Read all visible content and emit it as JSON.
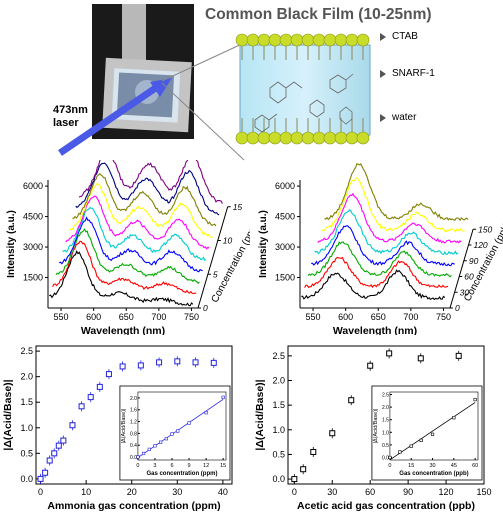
{
  "top": {
    "title": "Common Black Film (10-25nm)",
    "laser_label_line1": "473nm",
    "laser_label_line2": "laser",
    "layers": [
      "CTAB",
      "SNARF-1",
      "water"
    ]
  },
  "chart_data": [
    {
      "type": "line",
      "panel": "spectra-ammonia",
      "xlabel": "Wavelength (nm)",
      "ylabel": "Intensity (a.u.)",
      "zlabel": "Concentration (ppm)",
      "x_ticks": [
        "550",
        "600",
        "650",
        "700",
        "750"
      ],
      "y_ticks": [
        "1500",
        "3000",
        "4500",
        "6000"
      ],
      "z_ticks": [
        "0",
        "5",
        "10",
        "15"
      ],
      "xlim": [
        530,
        760
      ],
      "ylim": [
        0,
        6300
      ],
      "series_colors": [
        "#000000",
        "#ff0000",
        "#00aa00",
        "#0000ff",
        "#00cccc",
        "#ff00ff",
        "#ffff00",
        "#808000",
        "#000080",
        "#800080"
      ]
    },
    {
      "type": "line",
      "panel": "spectra-acetic",
      "xlabel": "Wavelength (nm)",
      "ylabel": "Intensity (a.u.)",
      "zlabel": "Concentration (ppb)",
      "x_ticks": [
        "550",
        "600",
        "650",
        "700",
        "750"
      ],
      "y_ticks": [
        "1500",
        "3000",
        "4500",
        "6000"
      ],
      "z_ticks": [
        "0",
        "30",
        "60",
        "90",
        "120",
        "150"
      ],
      "xlim": [
        530,
        760
      ],
      "ylim": [
        0,
        6300
      ],
      "series_colors": [
        "#000000",
        "#ff0000",
        "#00aa00",
        "#0000ff",
        "#00cccc",
        "#ff00ff",
        "#ffff00",
        "#808000"
      ]
    },
    {
      "type": "scatter",
      "panel": "ammonia-response",
      "xlabel": "Ammonia gas concentration (ppm)",
      "ylabel": "|Δ(Acid/Base)|",
      "xlim": [
        -1,
        42
      ],
      "ylim": [
        -0.1,
        2.6
      ],
      "x_ticks": [
        "0",
        "10",
        "20",
        "30",
        "40"
      ],
      "y_ticks": [
        "0.0",
        "0.5",
        "1.0",
        "1.5",
        "2.0",
        "2.5"
      ],
      "x": [
        0,
        1,
        2,
        3,
        4,
        5,
        7,
        9,
        11,
        13,
        15,
        18,
        22,
        26,
        30,
        34,
        38
      ],
      "y": [
        0.0,
        0.12,
        0.36,
        0.5,
        0.65,
        0.75,
        1.05,
        1.42,
        1.6,
        1.8,
        2.05,
        2.2,
        2.22,
        2.28,
        2.3,
        2.28,
        2.27
      ],
      "color": "#2222dd",
      "inset": {
        "xlabel": "Gas concentration (ppm)",
        "ylabel": "|Δ(Acid/Base)|",
        "xlim": [
          0,
          15.5
        ],
        "ylim": [
          -0.1,
          2.2
        ],
        "x_ticks": [
          "0",
          "3",
          "6",
          "9",
          "12",
          "15"
        ],
        "y_ticks": [
          "0.0",
          "0.4",
          "0.8",
          "1.2",
          "1.6",
          "2.0"
        ],
        "x": [
          0,
          1,
          2,
          3,
          4,
          5,
          6,
          7,
          9,
          12,
          15
        ],
        "y": [
          0.0,
          0.12,
          0.26,
          0.38,
          0.5,
          0.62,
          0.78,
          0.88,
          1.15,
          1.5,
          2.02
        ]
      }
    },
    {
      "type": "scatter",
      "panel": "acetic-response",
      "xlabel": "Acetic acid gas concentration (ppb)",
      "ylabel": "|Δ(Acid/Base)|",
      "xlim": [
        -5,
        150
      ],
      "ylim": [
        -0.1,
        2.7
      ],
      "x_ticks": [
        "0",
        "30",
        "60",
        "90",
        "120",
        "150"
      ],
      "y_ticks": [
        "0.0",
        "0.5",
        "1.0",
        "1.5",
        "2.0",
        "2.5"
      ],
      "x": [
        0,
        7,
        15,
        30,
        45,
        60,
        75,
        100,
        130
      ],
      "y": [
        0.0,
        0.2,
        0.55,
        0.93,
        1.6,
        2.3,
        2.55,
        2.45,
        2.5
      ],
      "color": "#000000",
      "inset": {
        "xlabel": "Gas concentration (ppb)",
        "ylabel": "|Δ(Acid/Base)|",
        "xlim": [
          0,
          62
        ],
        "ylim": [
          -0.1,
          2.6
        ],
        "x_ticks": [
          "0",
          "15",
          "30",
          "45",
          "60"
        ],
        "y_ticks": [
          "0.0",
          "0.5",
          "1.0",
          "1.5",
          "2.0",
          "2.5"
        ],
        "x": [
          0,
          7,
          15,
          22,
          30,
          45,
          60
        ],
        "y": [
          0.0,
          0.22,
          0.45,
          0.68,
          0.92,
          1.58,
          2.3
        ]
      }
    }
  ]
}
